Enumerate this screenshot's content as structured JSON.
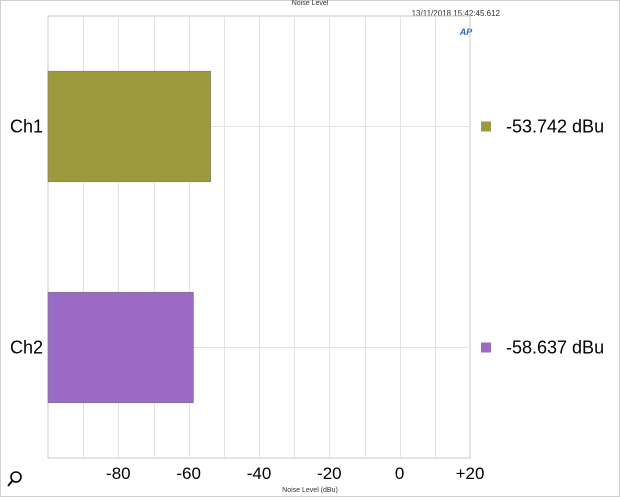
{
  "header": {
    "title": "Noise Level",
    "timestamp": "13/11/2018 15:42:45.612",
    "logo_text": "AP"
  },
  "chart_data": {
    "type": "bar",
    "orientation": "horizontal",
    "title": "Noise Level",
    "xlabel": "Noise Level (dBu)",
    "ylabel": "",
    "xlim": [
      -100,
      20
    ],
    "x_ticks": [
      -80,
      -60,
      -40,
      -20,
      0,
      20
    ],
    "x_tick_labels": [
      "-80",
      "-60",
      "-40",
      "-20",
      "0",
      "+20"
    ],
    "categories": [
      "Ch1",
      "Ch2"
    ],
    "values": [
      -53.742,
      -58.637
    ],
    "value_labels": [
      "-53.742  dBu",
      "-58.637  dBu"
    ],
    "colors": [
      "#9d9a3b",
      "#9b6ac4"
    ],
    "grid": true,
    "legend": "right"
  },
  "icons": {
    "zoom": "magnifier-icon"
  }
}
